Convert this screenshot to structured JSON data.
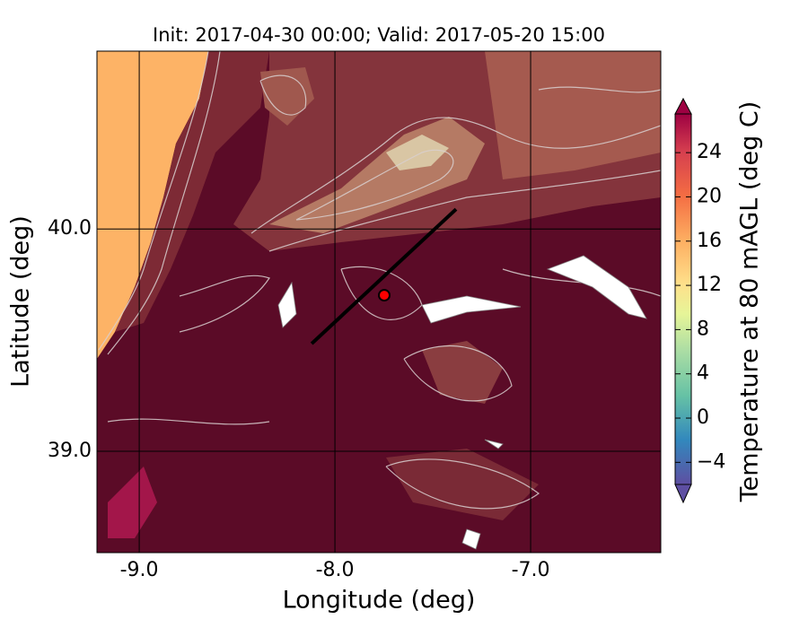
{
  "title": "Init: 2017-04-30 00:00; Valid: 2017-05-20 15:00",
  "x_axis": {
    "label": "Longitude (deg)",
    "lim": [
      -9.216,
      -6.335
    ],
    "ticks": [
      {
        "value": -9,
        "label": "-9.0"
      },
      {
        "value": -8,
        "label": "-8.0"
      },
      {
        "value": -7,
        "label": "-7.0"
      }
    ]
  },
  "y_axis": {
    "label": "Latitude (deg)",
    "lim": [
      38.544,
      40.8
    ],
    "ticks": [
      {
        "value": 39,
        "label": "39.0"
      },
      {
        "value": 40,
        "label": "40.0"
      }
    ]
  },
  "grid": true,
  "transect": {
    "lon": [
      -8.119,
      -7.381
    ],
    "lat": [
      39.484,
      40.089
    ]
  },
  "point": {
    "lon": -7.748,
    "lat": 39.702
  },
  "colorbar": {
    "label": "Temperature at 80 mAGL (deg C)",
    "lim": [
      -6,
      27.5
    ],
    "ticks": [
      {
        "value": -4,
        "label": "−4"
      },
      0,
      4,
      8,
      12,
      16,
      20,
      24
    ]
  }
}
